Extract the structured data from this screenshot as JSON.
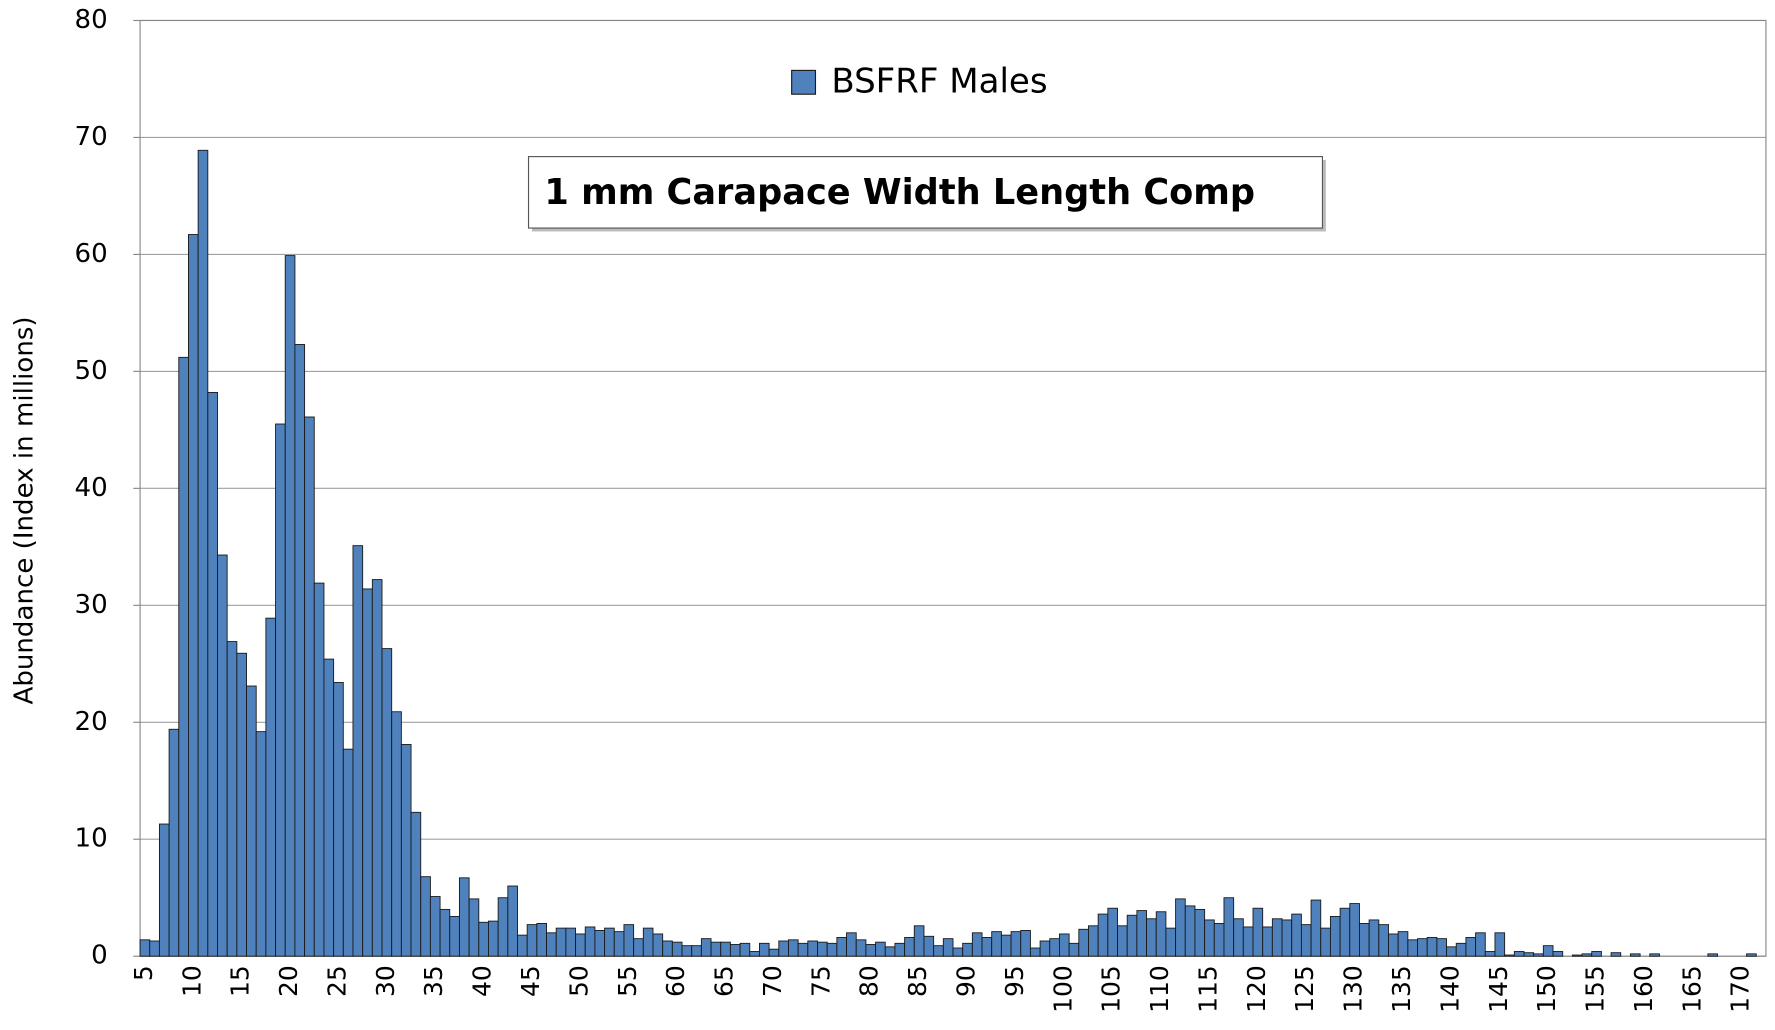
{
  "chart_data": {
    "type": "bar",
    "title": "1 mm Carapace Width Length Comp",
    "y_label": "Abundance (Index in millions)",
    "categories": [
      5,
      null,
      null,
      null,
      null,
      10,
      null,
      null,
      null,
      null,
      15,
      null,
      null,
      null,
      null,
      20,
      null,
      null,
      null,
      null,
      25,
      null,
      null,
      null,
      null,
      30,
      null,
      null,
      null,
      null,
      35,
      null,
      null,
      null,
      null,
      40,
      null,
      null,
      null,
      null,
      45,
      null,
      null,
      null,
      null,
      50,
      null,
      null,
      null,
      null,
      55,
      null,
      null,
      null,
      null,
      60,
      null,
      null,
      null,
      null,
      65,
      null,
      null,
      null,
      null,
      70,
      null,
      null,
      null,
      null,
      75,
      null,
      null,
      null,
      null,
      80,
      null,
      null,
      null,
      null,
      85,
      null,
      null,
      null,
      null,
      90,
      null,
      null,
      null,
      null,
      95,
      null,
      null,
      null,
      null,
      100,
      null,
      null,
      null,
      null,
      105,
      null,
      null,
      null,
      null,
      110,
      null,
      null,
      null,
      null,
      115,
      null,
      null,
      null,
      null,
      120,
      null,
      null,
      null,
      null,
      125,
      null,
      null,
      null,
      null,
      130,
      null,
      null,
      null,
      null,
      135,
      null,
      null,
      null,
      null,
      140,
      null,
      null,
      null,
      null,
      145,
      null,
      null,
      null,
      null,
      150,
      null,
      null,
      null,
      null,
      155,
      null,
      null,
      null,
      null,
      160,
      null,
      null,
      null,
      null,
      165,
      null,
      null,
      null,
      null,
      170,
      null,
      null
    ],
    "series": [
      {
        "name": "BSFRF Males",
        "color": "#4f81bd",
        "values": [
          1.4,
          1.3,
          11.3,
          19.4,
          51.2,
          61.7,
          68.9,
          48.2,
          34.3,
          26.9,
          25.9,
          23.1,
          19.2,
          28.9,
          45.5,
          59.9,
          52.3,
          46.1,
          31.9,
          25.4,
          23.4,
          17.7,
          35.1,
          31.4,
          32.2,
          26.3,
          20.9,
          18.1,
          12.3,
          6.8,
          5.1,
          4.0,
          3.4,
          6.7,
          4.9,
          2.9,
          3.0,
          5.0,
          6.0,
          1.8,
          2.7,
          2.8,
          2.0,
          2.4,
          2.4,
          1.9,
          2.5,
          2.2,
          2.4,
          2.1,
          2.7,
          1.5,
          2.4,
          1.9,
          1.3,
          1.2,
          0.9,
          0.9,
          1.5,
          1.2,
          1.2,
          1.0,
          1.1,
          0.4,
          1.1,
          0.6,
          1.3,
          1.4,
          1.1,
          1.3,
          1.2,
          1.1,
          1.6,
          2.0,
          1.4,
          1.0,
          1.2,
          0.8,
          1.1,
          1.6,
          2.6,
          1.7,
          0.9,
          1.5,
          0.7,
          1.1,
          2.0,
          1.6,
          2.1,
          1.8,
          2.1,
          2.2,
          0.7,
          1.3,
          1.5,
          1.9,
          1.1,
          2.3,
          2.6,
          3.6,
          4.1,
          2.6,
          3.5,
          3.9,
          3.2,
          3.8,
          2.4,
          4.9,
          4.3,
          4.0,
          3.1,
          2.8,
          5.0,
          3.2,
          2.5,
          4.1,
          2.5,
          3.2,
          3.1,
          3.6,
          2.7,
          4.8,
          2.4,
          3.4,
          4.1,
          4.5,
          2.8,
          3.1,
          2.7,
          1.9,
          2.1,
          1.4,
          1.5,
          1.6,
          1.5,
          0.8,
          1.1,
          1.6,
          2.0,
          0.4,
          2.0,
          0.1,
          0.4,
          0.3,
          0.2,
          0.9,
          0.4,
          0,
          0.1,
          0.2,
          0.4,
          0,
          0.3,
          0,
          0.2,
          0,
          0.2,
          0,
          0,
          0,
          0,
          0,
          0.2,
          0,
          0,
          0,
          0.2,
          0
        ]
      }
    ],
    "ylim": [
      0,
      80
    ],
    "yticks": [
      0,
      10,
      20,
      30,
      40,
      50,
      60,
      70,
      80
    ],
    "grid": true,
    "legend": "top"
  }
}
